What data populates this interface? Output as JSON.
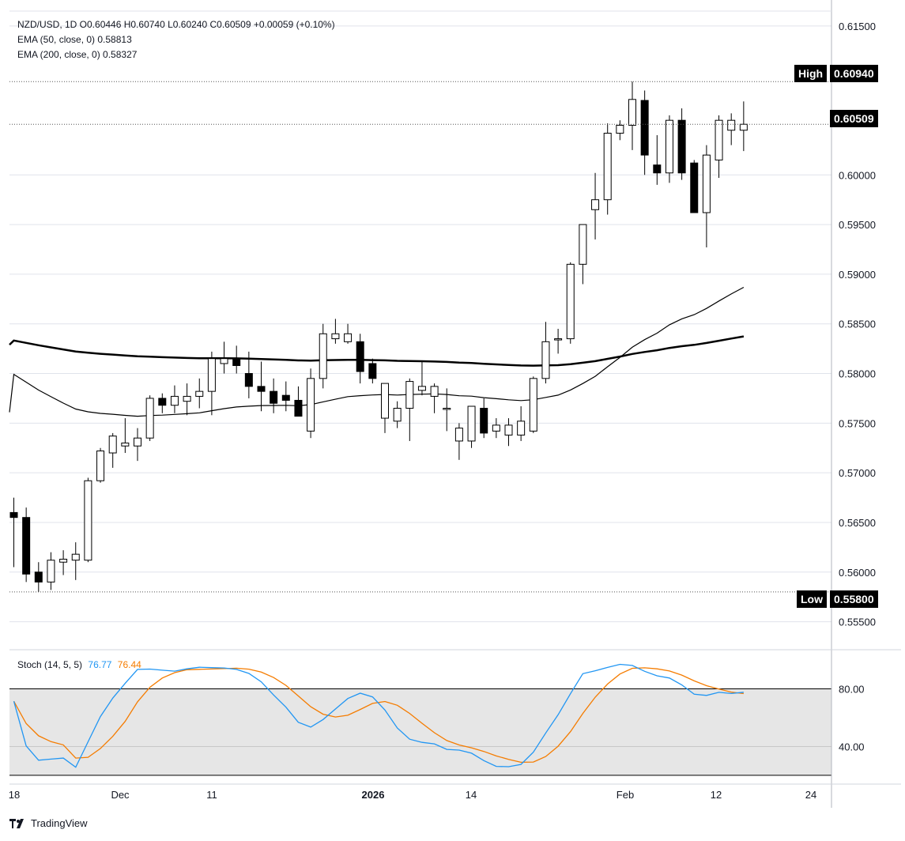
{
  "header": {
    "ohlc_line": "NZD/USD, 1D  O0.60446  H0.60740  L0.60240  C0.60509  +0.00059 (+0.10%)",
    "ema50_line": "EMA (50, close, 0)  0.58813",
    "ema200_line": "EMA (200, close, 0)  0.58327"
  },
  "badges": {
    "high_label": "High",
    "high_value": "0.60940",
    "last_value": "0.60509",
    "low_label": "Low",
    "low_value": "0.55800"
  },
  "stoch": {
    "label": "Stoch (14, 5, 5)",
    "k_value": "76.77",
    "d_value": "76.44",
    "k_color": "#2196f3",
    "d_color": "#f57c00"
  },
  "branding": {
    "name": "TradingView"
  },
  "chart_data": {
    "type": "candlestick",
    "symbol": "NZD/USD",
    "interval": "1D",
    "price_axis": {
      "ylim": [
        0.5525,
        0.6165
      ],
      "ticks": [
        "0.61500",
        "0.60000",
        "0.59500",
        "0.59000",
        "0.58500",
        "0.58000",
        "0.57500",
        "0.57000",
        "0.56500",
        "0.56000",
        "0.55500"
      ]
    },
    "x_axis_labels": [
      "18",
      "Dec",
      "11",
      "2026",
      "14",
      "Feb",
      "12",
      "24"
    ],
    "candles": [
      [
        0.566,
        0.5675,
        0.5605,
        0.5655
      ],
      [
        0.5655,
        0.5665,
        0.559,
        0.5598
      ],
      [
        0.56,
        0.561,
        0.558,
        0.559
      ],
      [
        0.559,
        0.562,
        0.5582,
        0.5612
      ],
      [
        0.561,
        0.5622,
        0.5597,
        0.5613
      ],
      [
        0.5612,
        0.563,
        0.5592,
        0.5618
      ],
      [
        0.5612,
        0.5695,
        0.561,
        0.5692
      ],
      [
        0.5692,
        0.5725,
        0.569,
        0.5722
      ],
      [
        0.572,
        0.574,
        0.5705,
        0.5737
      ],
      [
        0.5727,
        0.5755,
        0.572,
        0.573
      ],
      [
        0.5727,
        0.5745,
        0.5712,
        0.5735
      ],
      [
        0.5735,
        0.5778,
        0.5732,
        0.5775
      ],
      [
        0.5775,
        0.578,
        0.576,
        0.5768
      ],
      [
        0.5768,
        0.5788,
        0.576,
        0.5777
      ],
      [
        0.5772,
        0.579,
        0.5758,
        0.5777
      ],
      [
        0.5777,
        0.5795,
        0.5765,
        0.5782
      ],
      [
        0.5782,
        0.5822,
        0.5758,
        0.5815
      ],
      [
        0.581,
        0.5832,
        0.58,
        0.5815
      ],
      [
        0.5815,
        0.5828,
        0.58,
        0.5808
      ],
      [
        0.58,
        0.5822,
        0.5775,
        0.5787
      ],
      [
        0.5787,
        0.5812,
        0.5762,
        0.5782
      ],
      [
        0.5782,
        0.5795,
        0.576,
        0.577
      ],
      [
        0.5778,
        0.5792,
        0.5762,
        0.5773
      ],
      [
        0.5773,
        0.5787,
        0.5757,
        0.5757
      ],
      [
        0.5742,
        0.5805,
        0.5735,
        0.5795
      ],
      [
        0.5795,
        0.585,
        0.5785,
        0.584
      ],
      [
        0.5835,
        0.5855,
        0.583,
        0.584
      ],
      [
        0.5832,
        0.585,
        0.583,
        0.584
      ],
      [
        0.5832,
        0.584,
        0.579,
        0.5802
      ],
      [
        0.581,
        0.5815,
        0.579,
        0.5795
      ],
      [
        0.5755,
        0.579,
        0.574,
        0.579
      ],
      [
        0.5752,
        0.5772,
        0.5745,
        0.5765
      ],
      [
        0.5765,
        0.5795,
        0.5732,
        0.5792
      ],
      [
        0.5783,
        0.5812,
        0.5778,
        0.5787
      ],
      [
        0.5777,
        0.579,
        0.576,
        0.5787
      ],
      [
        0.5765,
        0.5785,
        0.5742,
        0.5765
      ],
      [
        0.5732,
        0.575,
        0.5713,
        0.5745
      ],
      [
        0.5732,
        0.5767,
        0.5725,
        0.5767
      ],
      [
        0.5765,
        0.5775,
        0.5735,
        0.574
      ],
      [
        0.5742,
        0.5755,
        0.5735,
        0.5748
      ],
      [
        0.5738,
        0.5755,
        0.5727,
        0.5748
      ],
      [
        0.5738,
        0.5767,
        0.5732,
        0.5752
      ],
      [
        0.5742,
        0.5797,
        0.574,
        0.5795
      ],
      [
        0.5795,
        0.5852,
        0.579,
        0.5832
      ],
      [
        0.5835,
        0.5845,
        0.582,
        0.5835
      ],
      [
        0.5835,
        0.5912,
        0.583,
        0.591
      ],
      [
        0.591,
        0.595,
        0.589,
        0.595
      ],
      [
        0.5965,
        0.6002,
        0.5935,
        0.5975
      ],
      [
        0.5975,
        0.6052,
        0.596,
        0.6042
      ],
      [
        0.6042,
        0.6055,
        0.6035,
        0.605
      ],
      [
        0.605,
        0.6094,
        0.6025,
        0.6076
      ],
      [
        0.6075,
        0.6085,
        0.6,
        0.602
      ],
      [
        0.601,
        0.604,
        0.599,
        0.6002
      ],
      [
        0.6002,
        0.606,
        0.5992,
        0.6055
      ],
      [
        0.6055,
        0.6067,
        0.5995,
        0.6002
      ],
      [
        0.6012,
        0.6015,
        0.5962,
        0.5962
      ],
      [
        0.5962,
        0.603,
        0.5927,
        0.602
      ],
      [
        0.6015,
        0.606,
        0.5997,
        0.6055
      ],
      [
        0.6045,
        0.6062,
        0.603,
        0.6055
      ],
      [
        0.6045,
        0.6074,
        0.6024,
        0.6051
      ]
    ],
    "ema50_label": "EMA (50, close, 0)",
    "ema200_label": "EMA (200, close, 0)",
    "stoch_axis": {
      "ylim": [
        15,
        105
      ],
      "ticks": [
        "80.00",
        "40.00"
      ],
      "band": [
        20,
        80
      ]
    }
  }
}
